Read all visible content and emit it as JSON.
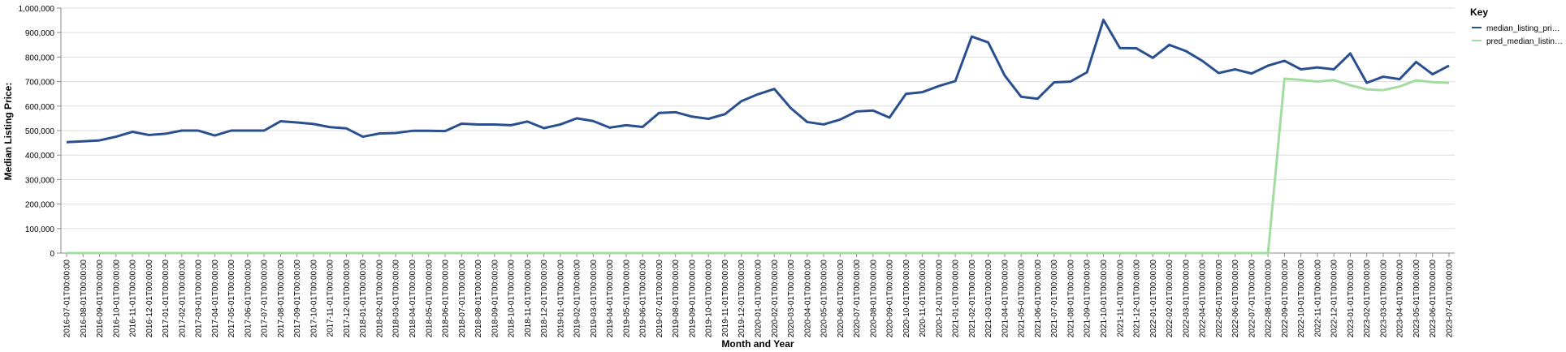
{
  "chart_data": {
    "type": "line",
    "x_label": "Month and Year",
    "y_label": "Median Listing Price:",
    "legend_title": "Key",
    "legend": "top-right",
    "grid": true,
    "categories": [
      "2016-07-01T00:00:00",
      "2016-08-01T00:00:00",
      "2016-09-01T00:00:00",
      "2016-10-01T00:00:00",
      "2016-11-01T00:00:00",
      "2016-12-01T00:00:00",
      "2017-01-01T00:00:00",
      "2017-02-01T00:00:00",
      "2017-03-01T00:00:00",
      "2017-04-01T00:00:00",
      "2017-05-01T00:00:00",
      "2017-06-01T00:00:00",
      "2017-07-01T00:00:00",
      "2017-08-01T00:00:00",
      "2017-09-01T00:00:00",
      "2017-10-01T00:00:00",
      "2017-11-01T00:00:00",
      "2017-12-01T00:00:00",
      "2018-01-01T00:00:00",
      "2018-02-01T00:00:00",
      "2018-03-01T00:00:00",
      "2018-04-01T00:00:00",
      "2018-05-01T00:00:00",
      "2018-06-01T00:00:00",
      "2018-07-01T00:00:00",
      "2018-08-01T00:00:00",
      "2018-09-01T00:00:00",
      "2018-10-01T00:00:00",
      "2018-11-01T00:00:00",
      "2018-12-01T00:00:00",
      "2019-01-01T00:00:00",
      "2019-02-01T00:00:00",
      "2019-03-01T00:00:00",
      "2019-04-01T00:00:00",
      "2019-05-01T00:00:00",
      "2019-06-01T00:00:00",
      "2019-07-01T00:00:00",
      "2019-08-01T00:00:00",
      "2019-09-01T00:00:00",
      "2019-10-01T00:00:00",
      "2019-11-01T00:00:00",
      "2019-12-01T00:00:00",
      "2020-01-01T00:00:00",
      "2020-02-01T00:00:00",
      "2020-03-01T00:00:00",
      "2020-04-01T00:00:00",
      "2020-05-01T00:00:00",
      "2020-06-01T00:00:00",
      "2020-07-01T00:00:00",
      "2020-08-01T00:00:00",
      "2020-09-01T00:00:00",
      "2020-10-01T00:00:00",
      "2020-11-01T00:00:00",
      "2020-12-01T00:00:00",
      "2021-01-01T00:00:00",
      "2021-02-01T00:00:00",
      "2021-03-01T00:00:00",
      "2021-04-01T00:00:00",
      "2021-05-01T00:00:00",
      "2021-06-01T00:00:00",
      "2021-07-01T00:00:00",
      "2021-08-01T00:00:00",
      "2021-09-01T00:00:00",
      "2021-10-01T00:00:00",
      "2021-11-01T00:00:00",
      "2021-12-01T00:00:00",
      "2022-01-01T00:00:00",
      "2022-02-01T00:00:00",
      "2022-03-01T00:00:00",
      "2022-04-01T00:00:00",
      "2022-05-01T00:00:00",
      "2022-06-01T00:00:00",
      "2022-07-01T00:00:00",
      "2022-08-01T00:00:00",
      "2022-09-01T00:00:00",
      "2022-10-01T00:00:00",
      "2022-11-01T00:00:00",
      "2022-12-01T00:00:00",
      "2023-01-01T00:00:00",
      "2023-02-01T00:00:00",
      "2023-03-01T00:00:00",
      "2023-04-01T00:00:00",
      "2023-05-01T00:00:00",
      "2023-06-01T00:00:00",
      "2023-07-01T00:00:00"
    ],
    "series": [
      {
        "name": "median_listing_pri…",
        "color": "#2a4f8f",
        "values": [
          453000,
          456000,
          460000,
          475000,
          495000,
          482000,
          487000,
          500000,
          500000,
          480000,
          500000,
          500000,
          500000,
          538000,
          533000,
          527000,
          514000,
          509000,
          475000,
          488000,
          490000,
          499000,
          499000,
          498000,
          528000,
          525000,
          525000,
          522000,
          537000,
          510000,
          525000,
          550000,
          539000,
          512000,
          522000,
          515000,
          572000,
          575000,
          557000,
          548000,
          567000,
          620000,
          648000,
          670000,
          592000,
          535000,
          525000,
          545000,
          578000,
          582000,
          553000,
          650000,
          657000,
          682000,
          702000,
          884000,
          860000,
          725000,
          638000,
          630000,
          697000,
          700000,
          738000,
          952000,
          837000,
          836000,
          797000,
          850000,
          825000,
          785000,
          735000,
          750000,
          733000,
          765000,
          785000,
          750000,
          758000,
          750000,
          815000,
          695000,
          720000,
          710000,
          780000,
          730000,
          765000
        ]
      },
      {
        "name": "pred_median_listin…",
        "color": "#a3dca0",
        "values": [
          0,
          0,
          0,
          0,
          0,
          0,
          0,
          0,
          0,
          0,
          0,
          0,
          0,
          0,
          0,
          0,
          0,
          0,
          0,
          0,
          0,
          0,
          0,
          0,
          0,
          0,
          0,
          0,
          0,
          0,
          0,
          0,
          0,
          0,
          0,
          0,
          0,
          0,
          0,
          0,
          0,
          0,
          0,
          0,
          0,
          0,
          0,
          0,
          0,
          0,
          0,
          0,
          0,
          0,
          0,
          0,
          0,
          0,
          0,
          0,
          0,
          0,
          0,
          0,
          0,
          0,
          0,
          0,
          0,
          0,
          0,
          0,
          0,
          0,
          712000,
          707000,
          700000,
          706000,
          685000,
          668000,
          665000,
          680000,
          705000,
          698000,
          695000
        ]
      }
    ],
    "ylim": [
      0,
      1000000
    ],
    "yticks": [
      0,
      {
        "value": 100000,
        "label": "100,000"
      },
      {
        "value": 200000,
        "label": "200,000"
      },
      {
        "value": 300000,
        "label": "300,000"
      },
      {
        "value": 400000,
        "label": "400,000"
      },
      {
        "value": 500000,
        "label": "500,000"
      },
      {
        "value": 600000,
        "label": "600,000"
      },
      {
        "value": 700000,
        "label": "700,000"
      },
      {
        "value": 800000,
        "label": "800,000"
      },
      {
        "value": 900000,
        "label": "900,000"
      },
      {
        "value": 1000000,
        "label": "1,000,000"
      }
    ]
  }
}
